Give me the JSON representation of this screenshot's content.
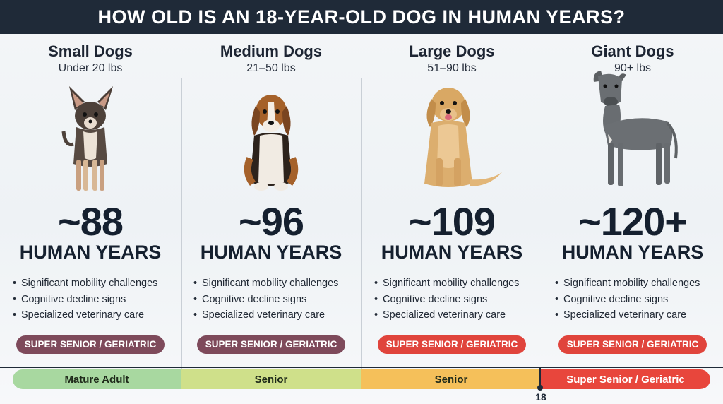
{
  "header": {
    "title": "HOW OLD IS AN 18-YEAR-OLD DOG IN HUMAN YEARS?"
  },
  "categories": [
    {
      "title": "Small Dogs",
      "range": "Under 20 lbs",
      "dog": "chihuahua-icon",
      "age": "~88",
      "unit": "HUMAN YEARS",
      "bullets": [
        "Significant mobility challenges",
        "Cognitive decline signs",
        "Specialized veterinary care"
      ],
      "badge": "SUPER SENIOR / GERIATRIC",
      "badge_color": "#7e4a5b"
    },
    {
      "title": "Medium Dogs",
      "range": "21–50 lbs",
      "dog": "beagle-icon",
      "age": "~96",
      "unit": "HUMAN YEARS",
      "bullets": [
        "Significant mobility challenges",
        "Cognitive decline signs",
        "Specialized veterinary care"
      ],
      "badge": "SUPER SENIOR / GERIATRIC",
      "badge_color": "#7e4a5b"
    },
    {
      "title": "Large Dogs",
      "range": "51–90 lbs",
      "dog": "golden-retriever-icon",
      "age": "~109",
      "unit": "HUMAN YEARS",
      "bullets": [
        "Significant mobility challenges",
        "Cognitive decline signs",
        "Specialized veterinary care"
      ],
      "badge": "SUPER SENIOR / GERIATRIC",
      "badge_color": "#e0443c"
    },
    {
      "title": "Giant Dogs",
      "range": "90+ lbs",
      "dog": "great-dane-icon",
      "age": "~120+",
      "unit": "HUMAN YEARS",
      "bullets": [
        "Significant mobility challenges",
        "Cognitive decline signs",
        "Specialized veterinary care"
      ],
      "badge": "SUPER SENIOR / GERIATRIC",
      "badge_color": "#e0443c"
    }
  ],
  "timeline": {
    "segments": [
      {
        "label": "Mature Adult",
        "color": "#a8d8a0"
      },
      {
        "label": "Senior",
        "color": "#cfe08a"
      },
      {
        "label": "Senior",
        "color": "#f5c05a"
      },
      {
        "label": "Super Senior / Geriatric",
        "color": "#e8463c",
        "text_color": "#ffffff"
      }
    ],
    "marker_label": "18"
  }
}
